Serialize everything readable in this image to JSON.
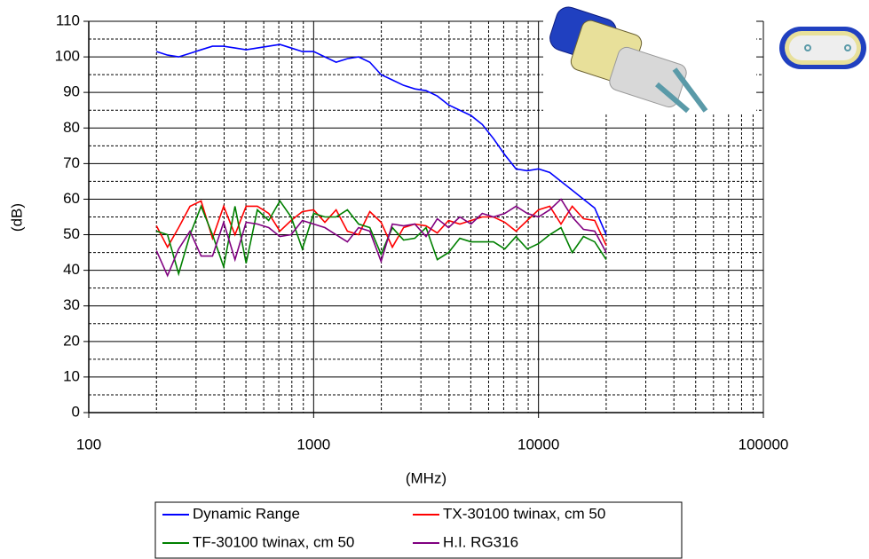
{
  "chart_data": {
    "type": "line",
    "x_label": "(MHz)",
    "y_label": "(dB)",
    "xscale": "log",
    "xlim": [
      100,
      100000
    ],
    "xticks": [
      100,
      1000,
      10000,
      100000
    ],
    "ylim": [
      0,
      110
    ],
    "yticks": [
      0,
      10,
      20,
      30,
      40,
      50,
      60,
      70,
      80,
      90,
      100,
      110
    ],
    "grid": true,
    "minor_grid": true,
    "legend": "bottom",
    "x": [
      200,
      224,
      251,
      282,
      316,
      355,
      398,
      447,
      501,
      562,
      631,
      708,
      794,
      891,
      1000,
      1122,
      1259,
      1413,
      1585,
      1778,
      1995,
      2239,
      2512,
      2818,
      3162,
      3548,
      3981,
      4467,
      5012,
      5623,
      6310,
      7079,
      7943,
      8913,
      10000,
      11220,
      12589,
      14125,
      15849,
      17783,
      20000
    ],
    "series": [
      {
        "name": "Dynamic Range",
        "color": "#0000ff",
        "values": [
          101.5,
          100.5,
          100,
          101,
          102,
          103,
          103,
          102.5,
          102,
          102.5,
          103,
          103.5,
          102.5,
          101.5,
          101.5,
          100,
          98.5,
          99.5,
          100,
          98.5,
          95,
          93.5,
          92,
          91,
          90.5,
          89,
          86.5,
          85,
          83.5,
          81,
          77,
          72.5,
          68.5,
          68,
          68.5,
          67.5,
          65,
          62.5,
          60,
          57.5,
          50
        ]
      },
      {
        "name": "TX-30100 twinax, cm 50",
        "color": "#ff0000",
        "values": [
          52.5,
          46.5,
          52,
          58,
          59.5,
          49,
          58,
          50,
          58,
          58,
          56,
          51,
          54,
          56.5,
          57,
          53.5,
          57,
          51,
          50,
          56.5,
          53.5,
          46.5,
          52,
          53,
          52.5,
          50.5,
          54,
          53,
          54,
          55,
          55,
          53.5,
          51,
          54,
          57,
          58,
          53,
          58,
          54.5,
          54,
          47
        ]
      },
      {
        "name": "TF-30100 twinax, cm 50",
        "color": "#008000",
        "values": [
          51,
          50,
          39,
          50,
          58,
          50,
          41,
          58,
          42,
          57,
          54,
          59.5,
          55,
          46,
          56,
          55,
          55,
          57,
          53,
          52,
          44.5,
          52,
          48.5,
          49,
          52,
          43,
          45,
          49,
          48,
          48,
          48,
          46,
          49.5,
          46,
          47.5,
          50,
          52,
          45,
          49.5,
          48,
          43
        ]
      },
      {
        "name": "H.I. RG316",
        "color": "#800080",
        "values": [
          45.5,
          38.5,
          46,
          51,
          44,
          44,
          53.5,
          43,
          53.5,
          53,
          52,
          49.5,
          50,
          54,
          53,
          52,
          50,
          48,
          52,
          51,
          42.5,
          53,
          52.5,
          53,
          49.5,
          54.5,
          52,
          55,
          53,
          56,
          55,
          56,
          58,
          56,
          55,
          57,
          60,
          55,
          51.5,
          51,
          45
        ]
      }
    ]
  }
}
